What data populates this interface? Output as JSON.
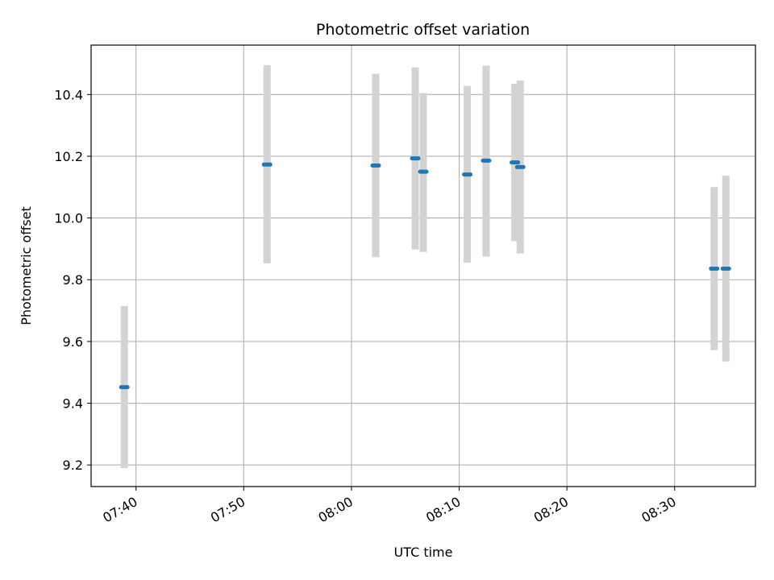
{
  "chart_data": {
    "type": "scatter",
    "title": "Photometric offset variation",
    "xlabel": "UTC time",
    "ylabel": "Photometric offset",
    "xlim": [
      "07:35:50",
      "08:37:30"
    ],
    "ylim": [
      9.13,
      10.56
    ],
    "xticks": [
      "07:40",
      "07:50",
      "08:00",
      "08:10",
      "08:20",
      "08:30"
    ],
    "yticks": [
      9.2,
      9.4,
      9.6,
      9.8,
      10.0,
      10.2,
      10.4
    ],
    "grid": true,
    "colors": {
      "point": "#1f77b4",
      "errorbar": "#d3d3d3",
      "grid": "#b0b0b0"
    },
    "points": [
      {
        "time": "07:38:55",
        "y": 9.452,
        "ylow": 9.19,
        "yhigh": 9.715
      },
      {
        "time": "07:52:10",
        "y": 10.173,
        "ylow": 9.853,
        "yhigh": 10.495
      },
      {
        "time": "08:02:15",
        "y": 10.17,
        "ylow": 9.873,
        "yhigh": 10.467
      },
      {
        "time": "08:05:55",
        "y": 10.193,
        "ylow": 9.898,
        "yhigh": 10.488
      },
      {
        "time": "08:06:40",
        "y": 10.15,
        "ylow": 9.89,
        "yhigh": 10.405
      },
      {
        "time": "08:10:45",
        "y": 10.141,
        "ylow": 9.855,
        "yhigh": 10.428
      },
      {
        "time": "08:12:30",
        "y": 10.186,
        "ylow": 9.875,
        "yhigh": 10.493
      },
      {
        "time": "08:15:10",
        "y": 10.18,
        "ylow": 9.925,
        "yhigh": 10.435
      },
      {
        "time": "08:15:40",
        "y": 10.165,
        "ylow": 9.885,
        "yhigh": 10.445
      },
      {
        "time": "08:33:40",
        "y": 9.836,
        "ylow": 9.572,
        "yhigh": 10.1
      },
      {
        "time": "08:34:45",
        "y": 9.836,
        "ylow": 9.535,
        "yhigh": 10.137
      }
    ]
  }
}
